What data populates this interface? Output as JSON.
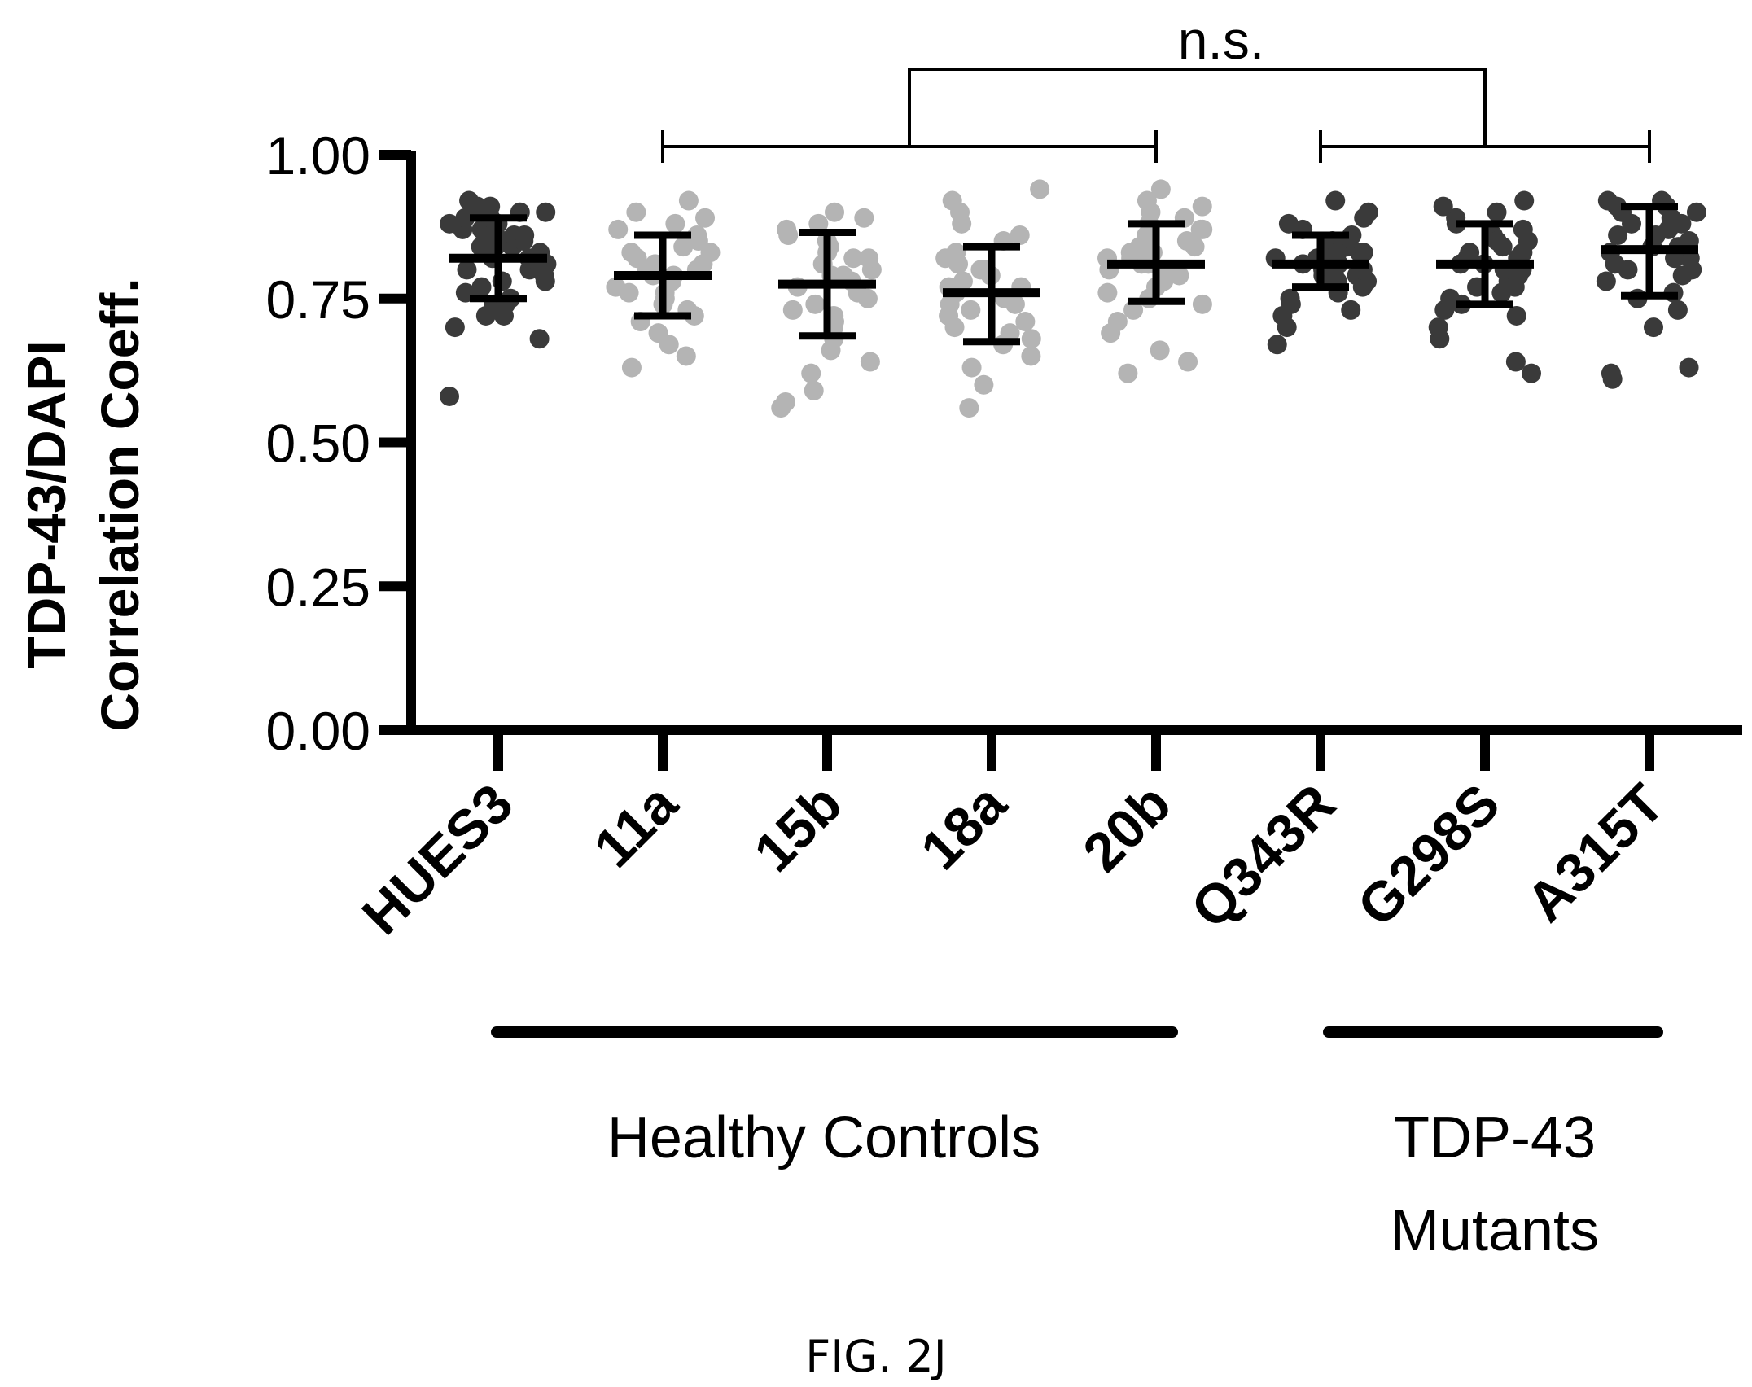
{
  "chart_data": {
    "type": "scatter",
    "ylabel_line1": "TDP-43/DAPI",
    "ylabel_line2": "Correlation Coeff.",
    "ylim": [
      0,
      1.0
    ],
    "yticks": [
      "0.00",
      "0.25",
      "0.50",
      "0.75",
      "1.00"
    ],
    "categories": [
      "HUES3",
      "11a",
      "15b",
      "18a",
      "20b",
      "Q343R",
      "G298S",
      "A315T"
    ],
    "groups": [
      {
        "label": "Healthy Controls",
        "categories": [
          "HUES3",
          "11a",
          "15b",
          "18a",
          "20b"
        ]
      },
      {
        "label_line1": "TDP-43",
        "label_line2": "Mutants",
        "categories": [
          "Q343R",
          "G298S",
          "A315T"
        ]
      }
    ],
    "series": [
      {
        "category": "HUES3",
        "shade": "dark",
        "mean": 0.82,
        "sd_low": 0.75,
        "sd_high": 0.89,
        "points": [
          0.58,
          0.68,
          0.7,
          0.72,
          0.72,
          0.74,
          0.75,
          0.76,
          0.77,
          0.78,
          0.79,
          0.8,
          0.8,
          0.81,
          0.82,
          0.82,
          0.83,
          0.83,
          0.84,
          0.84,
          0.85,
          0.85,
          0.86,
          0.86,
          0.87,
          0.87,
          0.88,
          0.88,
          0.89,
          0.89,
          0.9,
          0.9,
          0.91,
          0.91,
          0.92,
          0.74,
          0.78,
          0.81,
          0.84,
          0.86
        ]
      },
      {
        "category": "11a",
        "shade": "light",
        "mean": 0.79,
        "sd_low": 0.72,
        "sd_high": 0.86,
        "points": [
          0.63,
          0.65,
          0.67,
          0.69,
          0.71,
          0.72,
          0.73,
          0.74,
          0.75,
          0.76,
          0.77,
          0.78,
          0.79,
          0.79,
          0.8,
          0.8,
          0.81,
          0.82,
          0.83,
          0.84,
          0.85,
          0.86,
          0.87,
          0.88,
          0.89,
          0.9,
          0.92,
          0.76,
          0.81,
          0.83
        ]
      },
      {
        "category": "15b",
        "shade": "light",
        "mean": 0.775,
        "sd_low": 0.685,
        "sd_high": 0.865,
        "points": [
          0.56,
          0.57,
          0.59,
          0.62,
          0.64,
          0.66,
          0.68,
          0.7,
          0.71,
          0.72,
          0.74,
          0.75,
          0.76,
          0.77,
          0.78,
          0.79,
          0.8,
          0.81,
          0.82,
          0.83,
          0.84,
          0.85,
          0.86,
          0.87,
          0.88,
          0.89,
          0.9,
          0.73,
          0.79,
          0.82
        ]
      },
      {
        "category": "18a",
        "shade": "light",
        "mean": 0.76,
        "sd_low": 0.675,
        "sd_high": 0.84,
        "points": [
          0.56,
          0.6,
          0.63,
          0.65,
          0.67,
          0.68,
          0.69,
          0.7,
          0.71,
          0.72,
          0.73,
          0.74,
          0.75,
          0.76,
          0.77,
          0.78,
          0.79,
          0.8,
          0.81,
          0.82,
          0.83,
          0.85,
          0.86,
          0.88,
          0.9,
          0.92,
          0.94,
          0.74,
          0.77,
          0.8
        ]
      },
      {
        "category": "20b",
        "shade": "light",
        "mean": 0.81,
        "sd_low": 0.745,
        "sd_high": 0.88,
        "points": [
          0.62,
          0.64,
          0.66,
          0.69,
          0.71,
          0.73,
          0.74,
          0.75,
          0.76,
          0.77,
          0.78,
          0.79,
          0.8,
          0.8,
          0.81,
          0.81,
          0.82,
          0.83,
          0.84,
          0.84,
          0.85,
          0.86,
          0.87,
          0.88,
          0.89,
          0.9,
          0.91,
          0.92,
          0.94,
          0.78,
          0.83,
          0.86,
          0.87,
          0.82
        ]
      },
      {
        "category": "Q343R",
        "shade": "dark",
        "mean": 0.81,
        "sd_low": 0.77,
        "sd_high": 0.86,
        "points": [
          0.67,
          0.7,
          0.72,
          0.73,
          0.74,
          0.75,
          0.76,
          0.77,
          0.78,
          0.78,
          0.79,
          0.79,
          0.8,
          0.8,
          0.81,
          0.81,
          0.81,
          0.82,
          0.82,
          0.83,
          0.83,
          0.84,
          0.84,
          0.85,
          0.85,
          0.86,
          0.87,
          0.88,
          0.89,
          0.9,
          0.92,
          0.8,
          0.82,
          0.83,
          0.79
        ]
      },
      {
        "category": "G298S",
        "shade": "dark",
        "mean": 0.81,
        "sd_low": 0.74,
        "sd_high": 0.88,
        "points": [
          0.62,
          0.64,
          0.68,
          0.7,
          0.72,
          0.73,
          0.74,
          0.75,
          0.76,
          0.77,
          0.78,
          0.79,
          0.8,
          0.8,
          0.81,
          0.82,
          0.82,
          0.83,
          0.84,
          0.85,
          0.86,
          0.87,
          0.88,
          0.89,
          0.9,
          0.91,
          0.92,
          0.77,
          0.79,
          0.81,
          0.83,
          0.85
        ]
      },
      {
        "category": "A315T",
        "shade": "dark",
        "mean": 0.835,
        "sd_low": 0.755,
        "sd_high": 0.91,
        "points": [
          0.61,
          0.62,
          0.63,
          0.7,
          0.73,
          0.75,
          0.76,
          0.78,
          0.79,
          0.8,
          0.81,
          0.82,
          0.83,
          0.84,
          0.85,
          0.86,
          0.87,
          0.88,
          0.89,
          0.9,
          0.9,
          0.91,
          0.91,
          0.92,
          0.92,
          0.82,
          0.84,
          0.86,
          0.88,
          0.8
        ]
      }
    ],
    "annotation": {
      "text": "n.s.",
      "left_group": [
        "11a",
        "20b"
      ],
      "right_group": [
        "Q343R",
        "A315T"
      ]
    },
    "colors": {
      "dark": "#3a3a3a",
      "light": "#b4b4b4",
      "axis": "#000000"
    }
  },
  "caption": "FIG. 2J"
}
